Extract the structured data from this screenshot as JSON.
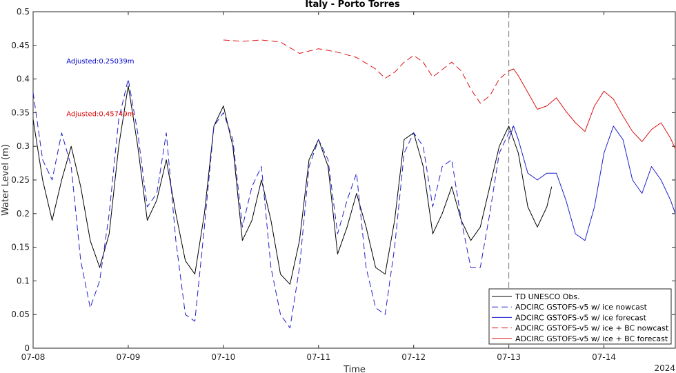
{
  "chart_data": {
    "type": "line",
    "title": "Italy - Porto Torres",
    "xlabel": "Time",
    "ylabel": "Water Level (m)",
    "year_label": "2024",
    "xlim": [
      0,
      6.75
    ],
    "ylim": [
      0,
      0.5
    ],
    "x_ticks": [
      0,
      1,
      2,
      3,
      4,
      5,
      6
    ],
    "x_tick_labels": [
      "07-08",
      "07-09",
      "07-10",
      "07-11",
      "07-12",
      "07-13",
      "07-14"
    ],
    "y_ticks": [
      0,
      0.05,
      0.1,
      0.15,
      0.2,
      0.25,
      0.3,
      0.35,
      0.4,
      0.45,
      0.5
    ],
    "y_tick_labels": [
      "0",
      "0.05",
      "0.1",
      "0.15",
      "0.2",
      "0.25",
      "0.3",
      "0.35",
      "0.4",
      "0.45",
      "0.5"
    ],
    "nowcast_divider_x": 5.0,
    "legend_position": "bottom-right",
    "annotations": [
      {
        "text": "Adjusted:0.25039m",
        "x": 0.35,
        "y": 0.423,
        "color": "#0000cc"
      },
      {
        "text": "Adjusted:0.45749m",
        "x": 0.35,
        "y": 0.345,
        "color": "#dd0000"
      }
    ],
    "series": [
      {
        "name": "TD UNESCO Obs.",
        "color": "#000000",
        "dash": "solid",
        "x": [
          0.0,
          0.1,
          0.2,
          0.3,
          0.4,
          0.5,
          0.6,
          0.7,
          0.8,
          0.9,
          1.0,
          1.1,
          1.2,
          1.3,
          1.4,
          1.5,
          1.6,
          1.7,
          1.8,
          1.9,
          2.0,
          2.1,
          2.2,
          2.3,
          2.4,
          2.5,
          2.6,
          2.7,
          2.8,
          2.9,
          3.0,
          3.1,
          3.2,
          3.3,
          3.4,
          3.5,
          3.6,
          3.7,
          3.8,
          3.9,
          4.0,
          4.1,
          4.2,
          4.3,
          4.4,
          4.5,
          4.6,
          4.7,
          4.8,
          4.9,
          5.0,
          5.1,
          5.2,
          5.3,
          5.4,
          5.45
        ],
        "y": [
          0.34,
          0.25,
          0.19,
          0.25,
          0.3,
          0.24,
          0.16,
          0.12,
          0.17,
          0.3,
          0.39,
          0.3,
          0.19,
          0.22,
          0.28,
          0.2,
          0.13,
          0.11,
          0.2,
          0.33,
          0.36,
          0.3,
          0.16,
          0.19,
          0.25,
          0.19,
          0.11,
          0.095,
          0.16,
          0.28,
          0.31,
          0.27,
          0.14,
          0.18,
          0.23,
          0.18,
          0.12,
          0.11,
          0.19,
          0.31,
          0.32,
          0.27,
          0.17,
          0.2,
          0.24,
          0.19,
          0.16,
          0.18,
          0.24,
          0.3,
          0.33,
          0.29,
          0.21,
          0.18,
          0.21,
          0.24
        ]
      },
      {
        "name": "ADCIRC GSTOFS-v5 w/ ice nowcast",
        "color": "#1f1fcc",
        "dash": "9,5",
        "x": [
          0.0,
          0.1,
          0.2,
          0.3,
          0.4,
          0.5,
          0.6,
          0.7,
          0.8,
          0.9,
          1.0,
          1.1,
          1.2,
          1.3,
          1.4,
          1.5,
          1.6,
          1.7,
          1.8,
          1.9,
          2.0,
          2.1,
          2.2,
          2.3,
          2.4,
          2.5,
          2.6,
          2.7,
          2.8,
          2.9,
          3.0,
          3.1,
          3.2,
          3.3,
          3.4,
          3.5,
          3.6,
          3.7,
          3.8,
          3.9,
          4.0,
          4.1,
          4.2,
          4.3,
          4.4,
          4.5,
          4.6,
          4.7,
          4.8,
          4.9,
          5.0,
          5.05
        ],
        "y": [
          0.38,
          0.28,
          0.25,
          0.32,
          0.27,
          0.13,
          0.06,
          0.1,
          0.2,
          0.34,
          0.4,
          0.32,
          0.21,
          0.23,
          0.32,
          0.16,
          0.05,
          0.04,
          0.18,
          0.33,
          0.35,
          0.31,
          0.18,
          0.24,
          0.27,
          0.12,
          0.05,
          0.03,
          0.12,
          0.27,
          0.31,
          0.28,
          0.17,
          0.22,
          0.26,
          0.12,
          0.06,
          0.05,
          0.15,
          0.29,
          0.32,
          0.3,
          0.21,
          0.27,
          0.28,
          0.19,
          0.12,
          0.12,
          0.2,
          0.29,
          0.32,
          0.33
        ]
      },
      {
        "name": "ADCIRC GSTOFS-v5 w/ ice forecast",
        "color": "#1f1fcc",
        "dash": "solid",
        "x": [
          5.0,
          5.05,
          5.1,
          5.2,
          5.3,
          5.4,
          5.5,
          5.6,
          5.7,
          5.8,
          5.9,
          6.0,
          6.1,
          6.2,
          6.3,
          6.4,
          6.5,
          6.6,
          6.7,
          6.75
        ],
        "y": [
          0.31,
          0.33,
          0.31,
          0.26,
          0.25,
          0.26,
          0.26,
          0.22,
          0.17,
          0.16,
          0.21,
          0.29,
          0.33,
          0.31,
          0.25,
          0.23,
          0.27,
          0.25,
          0.22,
          0.2
        ]
      },
      {
        "name": "ADCIRC GSTOFS-v5 w/ ice + BC nowcast",
        "color": "#dd1111",
        "dash": "9,5",
        "x": [
          2.0,
          2.2,
          2.4,
          2.6,
          2.8,
          3.0,
          3.2,
          3.4,
          3.6,
          3.7,
          3.8,
          3.9,
          4.0,
          4.1,
          4.2,
          4.3,
          4.4,
          4.5,
          4.6,
          4.7,
          4.8,
          4.9,
          5.0,
          5.05
        ],
        "y": [
          0.458,
          0.456,
          0.458,
          0.455,
          0.438,
          0.445,
          0.44,
          0.432,
          0.415,
          0.401,
          0.41,
          0.425,
          0.435,
          0.425,
          0.403,
          0.414,
          0.425,
          0.412,
          0.385,
          0.364,
          0.375,
          0.4,
          0.412,
          0.415
        ]
      },
      {
        "name": "ADCIRC GSTOFS-v5 w/ ice + BC forecast",
        "color": "#dd1111",
        "dash": "solid",
        "x": [
          5.0,
          5.05,
          5.1,
          5.2,
          5.3,
          5.4,
          5.5,
          5.6,
          5.7,
          5.8,
          5.9,
          6.0,
          6.1,
          6.2,
          6.3,
          6.4,
          6.5,
          6.6,
          6.7,
          6.75
        ],
        "y": [
          0.412,
          0.415,
          0.405,
          0.38,
          0.355,
          0.36,
          0.372,
          0.352,
          0.335,
          0.322,
          0.36,
          0.382,
          0.37,
          0.345,
          0.322,
          0.307,
          0.325,
          0.335,
          0.312,
          0.296
        ]
      }
    ]
  }
}
